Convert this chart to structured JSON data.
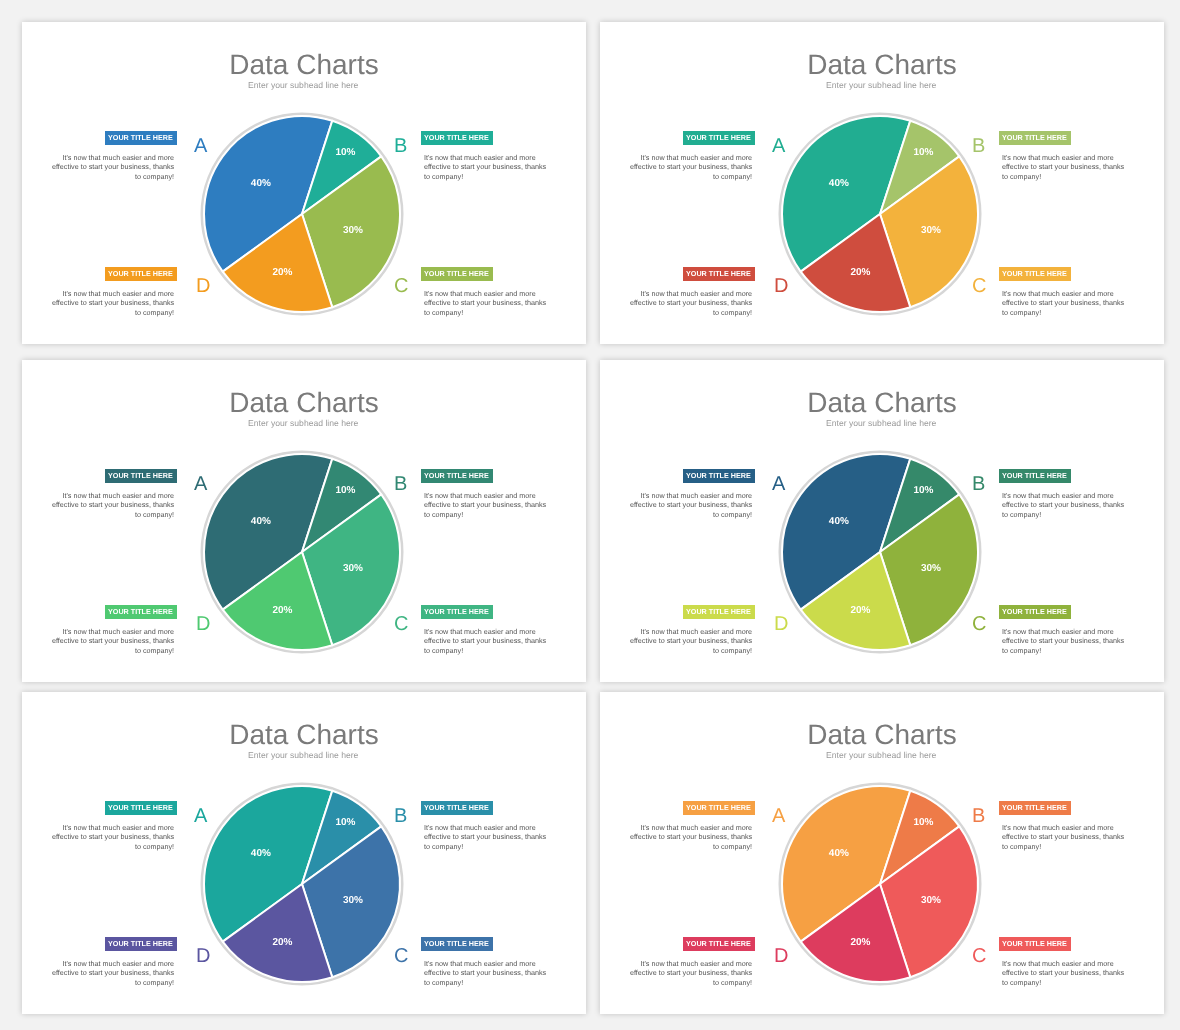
{
  "chart_data": [
    {
      "type": "pie",
      "title": "Data Charts",
      "subtitle": "Enter your subhead line here",
      "categories": [
        "A",
        "B",
        "C",
        "D"
      ],
      "values": [
        40,
        10,
        30,
        20
      ],
      "colors": [
        "#2e7dc0",
        "#1fae98",
        "#99bb4f",
        "#f39c1f"
      ],
      "value_labels": [
        "40%",
        "10%",
        "30%",
        "20%"
      ],
      "legend": "left",
      "annotations": [
        "YOUR TITLE HERE",
        "It's now that much easier and more effective to start your business, thanks to company!",
        "YOUR TITLE HERE",
        "It's now that much easier and more effective to start your business, thanks to company!",
        "YOUR TITLE HERE",
        "It's now that much easier and more effective to start your business, thanks to company!",
        "YOUR TITLE HERE",
        "It's now that much easier and more effective to start your business, thanks to company!"
      ]
    },
    {
      "type": "pie",
      "title": "Data Charts",
      "subtitle": "Enter your subhead line here",
      "categories": [
        "A",
        "B",
        "C",
        "D"
      ],
      "values": [
        40,
        10,
        30,
        20
      ],
      "colors": [
        "#21ad91",
        "#a5c46a",
        "#f3b23c",
        "#cf4d3e"
      ],
      "value_labels": [
        "40%",
        "10%",
        "30%",
        "20%"
      ],
      "legend": "left",
      "annotations": [
        "YOUR TITLE HERE",
        "It's now that much easier and more effective to start your business, thanks to company!",
        "YOUR TITLE HERE",
        "It's now that much easier and more effective to start your business, thanks to company!",
        "YOUR TITLE HERE",
        "It's now that much easier and more effective to start your business, thanks to company!",
        "YOUR TITLE HERE",
        "It's now that much easier and more effective to start your business, thanks to company!"
      ]
    },
    {
      "type": "pie",
      "title": "Data Charts",
      "subtitle": "Enter your subhead line here",
      "categories": [
        "A",
        "B",
        "C",
        "D"
      ],
      "values": [
        40,
        10,
        30,
        20
      ],
      "colors": [
        "#2e6c74",
        "#328873",
        "#3fb583",
        "#4fc971"
      ],
      "value_labels": [
        "40%",
        "10%",
        "30%",
        "20%"
      ],
      "legend": "left",
      "annotations": [
        "YOUR TITLE HERE",
        "It's now that much easier and more effective to start your business, thanks to company!",
        "YOUR TITLE HERE",
        "It's now that much easier and more effective to start your business, thanks to company!",
        "YOUR TITLE HERE",
        "It's now that much easier and more effective to start your business, thanks to company!",
        "YOUR TITLE HERE",
        "It's now that much easier and more effective to start your business, thanks to company!"
      ]
    },
    {
      "type": "pie",
      "title": "Data Charts",
      "subtitle": "Enter your subhead line here",
      "categories": [
        "A",
        "B",
        "C",
        "D"
      ],
      "values": [
        40,
        10,
        30,
        20
      ],
      "colors": [
        "#265f86",
        "#35896a",
        "#8fb23c",
        "#cbdb4b"
      ],
      "value_labels": [
        "40%",
        "10%",
        "30%",
        "20%"
      ],
      "legend": "left",
      "annotations": [
        "YOUR TITLE HERE",
        "It's now that much easier and more effective to start your business, thanks to company!",
        "YOUR TITLE HERE",
        "It's now that much easier and more effective to start your business, thanks to company!",
        "YOUR TITLE HERE",
        "It's now that much easier and more effective to start your business, thanks to company!",
        "YOUR TITLE HERE",
        "It's now that much easier and more effective to start your business, thanks to company!"
      ]
    },
    {
      "type": "pie",
      "title": "Data Charts",
      "subtitle": "Enter your subhead line here",
      "categories": [
        "A",
        "B",
        "C",
        "D"
      ],
      "values": [
        40,
        10,
        30,
        20
      ],
      "colors": [
        "#1ba79d",
        "#2a8fa9",
        "#3d73a9",
        "#5b56a0"
      ],
      "value_labels": [
        "40%",
        "10%",
        "30%",
        "20%"
      ],
      "legend": "left",
      "annotations": [
        "YOUR TITLE HERE",
        "It's now that much easier and more effective to start your business, thanks to company!",
        "YOUR TITLE HERE",
        "It's now that much easier and more effective to start your business, thanks to company!",
        "YOUR TITLE HERE",
        "It's now that much easier and more effective to start your business, thanks to company!",
        "YOUR TITLE HERE",
        "It's now that much easier and more effective to start your business, thanks to company!"
      ]
    },
    {
      "type": "pie",
      "title": "Data Charts",
      "subtitle": "Enter your subhead line here",
      "categories": [
        "A",
        "B",
        "C",
        "D"
      ],
      "values": [
        40,
        10,
        30,
        20
      ],
      "colors": [
        "#f6a043",
        "#ee7b48",
        "#ef5a5a",
        "#dd3c5e"
      ],
      "value_labels": [
        "40%",
        "10%",
        "30%",
        "20%"
      ],
      "legend": "left",
      "annotations": [
        "YOUR TITLE HERE",
        "It's now that much easier and more effective to start your business, thanks to company!",
        "YOUR TITLE HERE",
        "It's now that much easier and more effective to start your business, thanks to company!",
        "YOUR TITLE HERE",
        "It's now that much easier and more effective to start your business, thanks to company!",
        "YOUR TITLE HERE",
        "It's now that much easier and more effective to start your business, thanks to company!"
      ]
    }
  ]
}
